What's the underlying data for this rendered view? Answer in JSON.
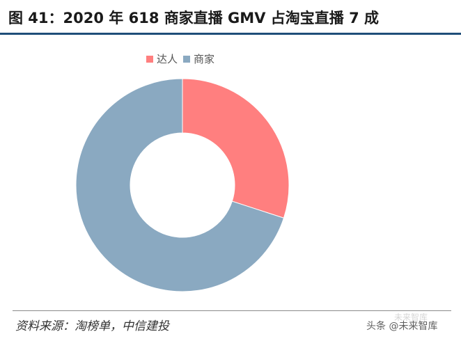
{
  "title": "图 41：2020 年 618 商家直播 GMV 占淘宝直播 7 成",
  "source": "资料来源：淘榜单，中信建投",
  "watermark": {
    "main": "头条 @未来智库",
    "faint": "未来智库"
  },
  "colors": {
    "title_rule": "#1f4e79",
    "daren": "#ff7f7f",
    "shangjia": "#8aa9c1"
  },
  "chart_data": {
    "type": "pie",
    "donut": true,
    "title": "",
    "legend_position": "top",
    "series": [
      {
        "name": "达人",
        "value": 30,
        "color": "#ff7f7f"
      },
      {
        "name": "商家",
        "value": 70,
        "color": "#8aa9c1"
      }
    ]
  }
}
